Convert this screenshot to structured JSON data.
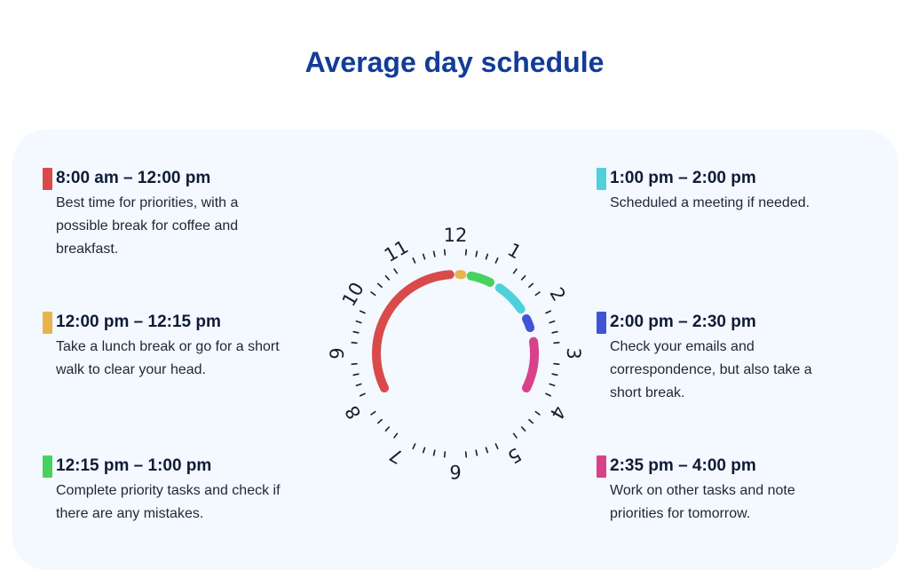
{
  "title": "Average day schedule",
  "clock": {
    "numbers": [
      "12",
      "1",
      "2",
      "3",
      "4",
      "5",
      "6",
      "7",
      "8",
      "9",
      "10",
      "11"
    ]
  },
  "schedule": [
    {
      "time": "8:00 am – 12:00 pm",
      "color": "#d94a4a",
      "start_hour": 8,
      "end_hour": 12,
      "lines": [
        "Best time for priorities, with a",
        "possible break for coffee and",
        "breakfast."
      ]
    },
    {
      "time": "12:00 pm – 12:15 pm",
      "color": "#e8b44e",
      "start_hour": 12,
      "end_hour": 12.25,
      "lines": [
        "Take a lunch break or go for a short",
        "walk to clear your head."
      ]
    },
    {
      "time": "12:15 pm – 1:00 pm",
      "color": "#47d25f",
      "start_hour": 12.25,
      "end_hour": 13,
      "lines": [
        "Complete priority tasks and check if",
        "there are any mistakes."
      ]
    },
    {
      "time": "1:00 pm – 2:00 pm",
      "color": "#4fd1dc",
      "start_hour": 13,
      "end_hour": 14,
      "lines": [
        "Scheduled a meeting if needed."
      ]
    },
    {
      "time": "2:00 pm – 2:30 pm",
      "color": "#4254d6",
      "start_hour": 14,
      "end_hour": 14.5,
      "lines": [
        "Check your emails and",
        "correspondence, but also take a",
        "short break."
      ]
    },
    {
      "time": "2:35 pm – 4:00 pm",
      "color": "#d9428b",
      "start_hour": 14.58,
      "end_hour": 16,
      "lines": [
        "Work on other tasks and note",
        "priorities for tomorrow."
      ]
    }
  ]
}
